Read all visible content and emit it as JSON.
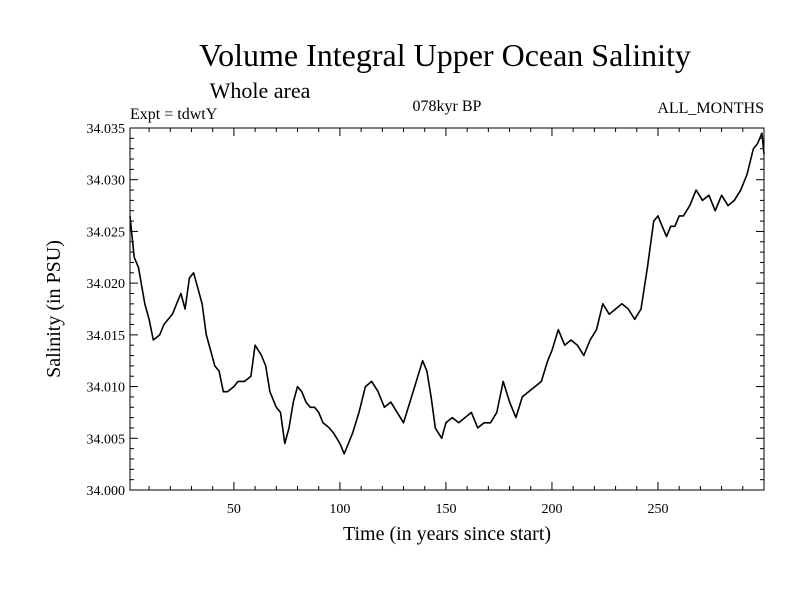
{
  "chart_data": {
    "type": "line",
    "title": "Volume Integral Upper Ocean Salinity",
    "subtitle": "Whole area",
    "left_label": "Expt = tdwtY",
    "center_label": "078kyr BP",
    "right_label": "ALL_MONTHS",
    "xlabel": "Time (in years since start)",
    "ylabel": "Salinity (in PSU)",
    "xlim": [
      1,
      300
    ],
    "ylim": [
      34.0,
      34.035
    ],
    "x_ticks": [
      50,
      100,
      150,
      200,
      250
    ],
    "x_tick_labels": [
      "50",
      "100",
      "150",
      "200",
      "250"
    ],
    "y_ticks": [
      34.0,
      34.005,
      34.01,
      34.015,
      34.02,
      34.025,
      34.03,
      34.035
    ],
    "y_tick_labels": [
      "34.000",
      "34.005",
      "34.010",
      "34.015",
      "34.020",
      "34.025",
      "34.030",
      "34.035"
    ],
    "series": [
      {
        "name": "salinity",
        "x": [
          1,
          3,
          5,
          8,
          10,
          12,
          15,
          17,
          19,
          21,
          23,
          25,
          27,
          29,
          31,
          33,
          35,
          37,
          39,
          41,
          43,
          45,
          47,
          50,
          52,
          55,
          58,
          60,
          63,
          65,
          67,
          70,
          72,
          74,
          76,
          78,
          80,
          82,
          84,
          86,
          88,
          90,
          92,
          95,
          97,
          100,
          102,
          104,
          106,
          109,
          112,
          115,
          118,
          121,
          124,
          127,
          130,
          133,
          136,
          139,
          141,
          143,
          145,
          148,
          150,
          153,
          156,
          159,
          162,
          165,
          168,
          171,
          174,
          177,
          180,
          183,
          186,
          189,
          192,
          195,
          198,
          200,
          203,
          206,
          209,
          212,
          215,
          218,
          221,
          224,
          227,
          230,
          233,
          236,
          239,
          242,
          245,
          248,
          250,
          252,
          254,
          256,
          258,
          260,
          262,
          265,
          268,
          271,
          274,
          277,
          280,
          283,
          286,
          289,
          292,
          295,
          297,
          299,
          300
        ],
        "y": [
          34.0265,
          34.0225,
          34.0215,
          34.018,
          34.0165,
          34.0145,
          34.015,
          34.016,
          34.0165,
          34.017,
          34.018,
          34.019,
          34.0175,
          34.0205,
          34.021,
          34.0195,
          34.018,
          34.015,
          34.0135,
          34.012,
          34.0115,
          34.0095,
          34.0095,
          34.01,
          34.0105,
          34.0105,
          34.011,
          34.014,
          34.013,
          34.012,
          34.0095,
          34.008,
          34.0075,
          34.0045,
          34.006,
          34.0085,
          34.01,
          34.0095,
          34.0085,
          34.008,
          34.008,
          34.0075,
          34.0065,
          34.006,
          34.0055,
          34.0045,
          34.0035,
          34.0045,
          34.0055,
          34.0075,
          34.01,
          34.0105,
          34.0095,
          34.008,
          34.0085,
          34.0075,
          34.0065,
          34.0085,
          34.0105,
          34.0125,
          34.0115,
          34.009,
          34.006,
          34.005,
          34.0065,
          34.007,
          34.0065,
          34.007,
          34.0075,
          34.006,
          34.0065,
          34.0065,
          34.0075,
          34.0105,
          34.0085,
          34.007,
          34.009,
          34.0095,
          34.01,
          34.0105,
          34.0125,
          34.0135,
          34.0155,
          34.014,
          34.0145,
          34.014,
          34.013,
          34.0145,
          34.0155,
          34.018,
          34.017,
          34.0175,
          34.018,
          34.0175,
          34.0165,
          34.0175,
          34.0215,
          34.026,
          34.0265,
          34.0255,
          34.0245,
          34.0255,
          34.0255,
          34.0265,
          34.0265,
          34.0275,
          34.029,
          34.028,
          34.0285,
          34.027,
          34.0285,
          34.0275,
          34.028,
          34.029,
          34.0305,
          34.033,
          34.0335,
          34.0345,
          34.0325
        ]
      }
    ]
  }
}
